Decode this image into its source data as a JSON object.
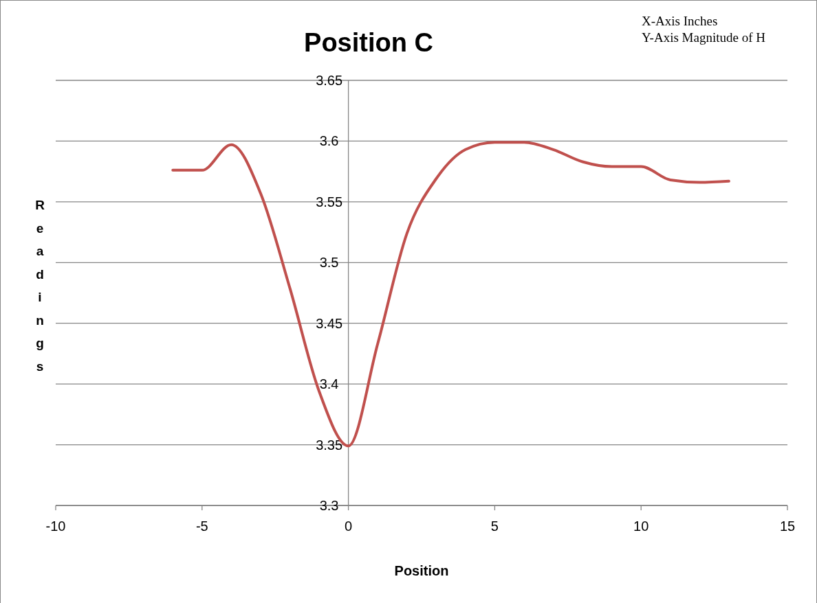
{
  "chart_data": {
    "type": "line",
    "title": "Position C",
    "xlabel": "Position",
    "ylabel": "Readings",
    "annotations": [
      "X-Axis Inches",
      "Y-Axis Magnitude of H"
    ],
    "x": [
      -6,
      -5,
      -4,
      -3,
      -2,
      -1,
      0,
      1,
      2,
      3,
      4,
      5,
      6,
      7,
      8,
      9,
      10,
      11,
      12,
      13
    ],
    "series": [
      {
        "color": "#c0504d",
        "values": [
          3.576,
          3.576,
          3.597,
          3.557,
          3.479,
          3.394,
          3.349,
          3.433,
          3.524,
          3.569,
          3.593,
          3.599,
          3.599,
          3.593,
          3.583,
          3.579,
          3.579,
          3.568,
          3.566,
          3.567
        ]
      }
    ],
    "xlim": [
      -10,
      15
    ],
    "xticks": [
      -10,
      -5,
      0,
      5,
      10,
      15
    ],
    "ylim": [
      3.3,
      3.65
    ],
    "yticks": [
      3.3,
      3.35,
      3.4,
      3.45,
      3.5,
      3.55,
      3.6,
      3.65
    ],
    "grid": "y",
    "marker": "none",
    "line_style": "solid"
  }
}
